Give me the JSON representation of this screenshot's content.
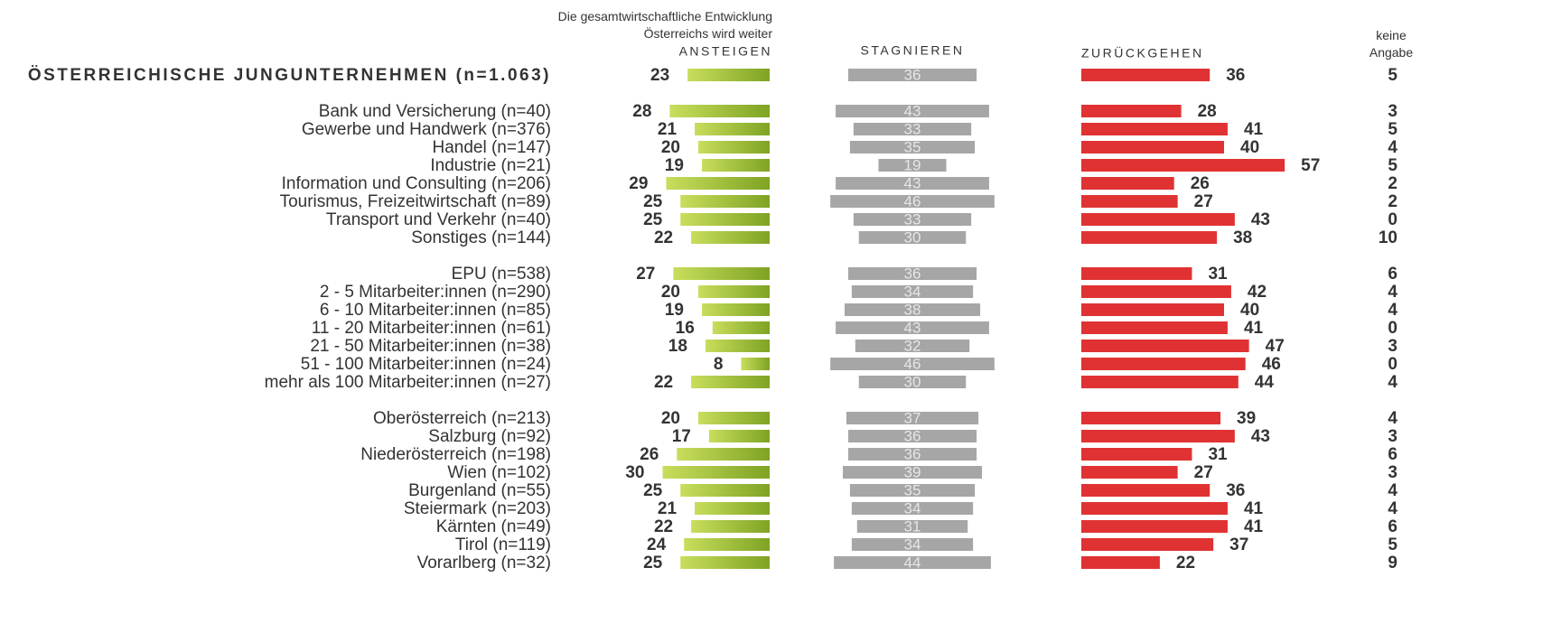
{
  "chart_data": {
    "type": "bar",
    "subtitle": "Die gesamtwirtschaftliche Entwicklung Österreichs wird weiter",
    "categories": [
      "ÖSTERREICHISCHE JUNGUNTERNEHMEN (n=1.063)",
      "Bank und Versicherung (n=40)",
      "Gewerbe und Handwerk (n=376)",
      "Handel (n=147)",
      "Industrie (n=21)",
      "Information und Consulting (n=206)",
      "Tourismus, Freizeitwirtschaft (n=89)",
      "Transport und Verkehr (n=40)",
      "Sonstiges (n=144)",
      "EPU (n=538)",
      "2 - 5 Mitarbeiter:innen (n=290)",
      "6 - 10 Mitarbeiter:innen (n=85)",
      "11 - 20 Mitarbeiter:innen (n=61)",
      "21 - 50 Mitarbeiter:innen (n=38)",
      "51 - 100 Mitarbeiter:innen (n=24)",
      "mehr als 100 Mitarbeiter:innen (n=27)",
      "Oberösterreich (n=213)",
      "Salzburg (n=92)",
      "Niederösterreich (n=198)",
      "Wien (n=102)",
      "Burgenland (n=55)",
      "Steiermark (n=203)",
      "Kärnten (n=49)",
      "Tirol (n=119)",
      "Vorarlberg (n=32)"
    ],
    "series": [
      {
        "name": "ANSTEIGEN",
        "color": "#7fa324",
        "values": [
          23,
          28,
          21,
          20,
          19,
          29,
          25,
          25,
          22,
          27,
          20,
          19,
          16,
          18,
          8,
          22,
          20,
          17,
          26,
          30,
          25,
          21,
          22,
          24,
          25
        ]
      },
      {
        "name": "STAGNIEREN",
        "color": "#a6a6a6",
        "values": [
          36,
          43,
          33,
          35,
          19,
          43,
          46,
          33,
          30,
          36,
          34,
          38,
          43,
          32,
          46,
          30,
          37,
          36,
          36,
          39,
          35,
          34,
          31,
          34,
          44
        ]
      },
      {
        "name": "ZURÜCKGEHEN",
        "color": "#e03232",
        "values": [
          36,
          28,
          41,
          40,
          57,
          26,
          27,
          43,
          38,
          31,
          42,
          40,
          41,
          47,
          46,
          44,
          39,
          43,
          31,
          27,
          36,
          41,
          41,
          37,
          22
        ]
      },
      {
        "name": "keine Angabe",
        "color": "#333333",
        "values": [
          5,
          3,
          5,
          4,
          5,
          2,
          2,
          0,
          10,
          6,
          4,
          4,
          0,
          3,
          0,
          4,
          4,
          3,
          6,
          3,
          4,
          4,
          6,
          5,
          9
        ]
      }
    ]
  }
}
